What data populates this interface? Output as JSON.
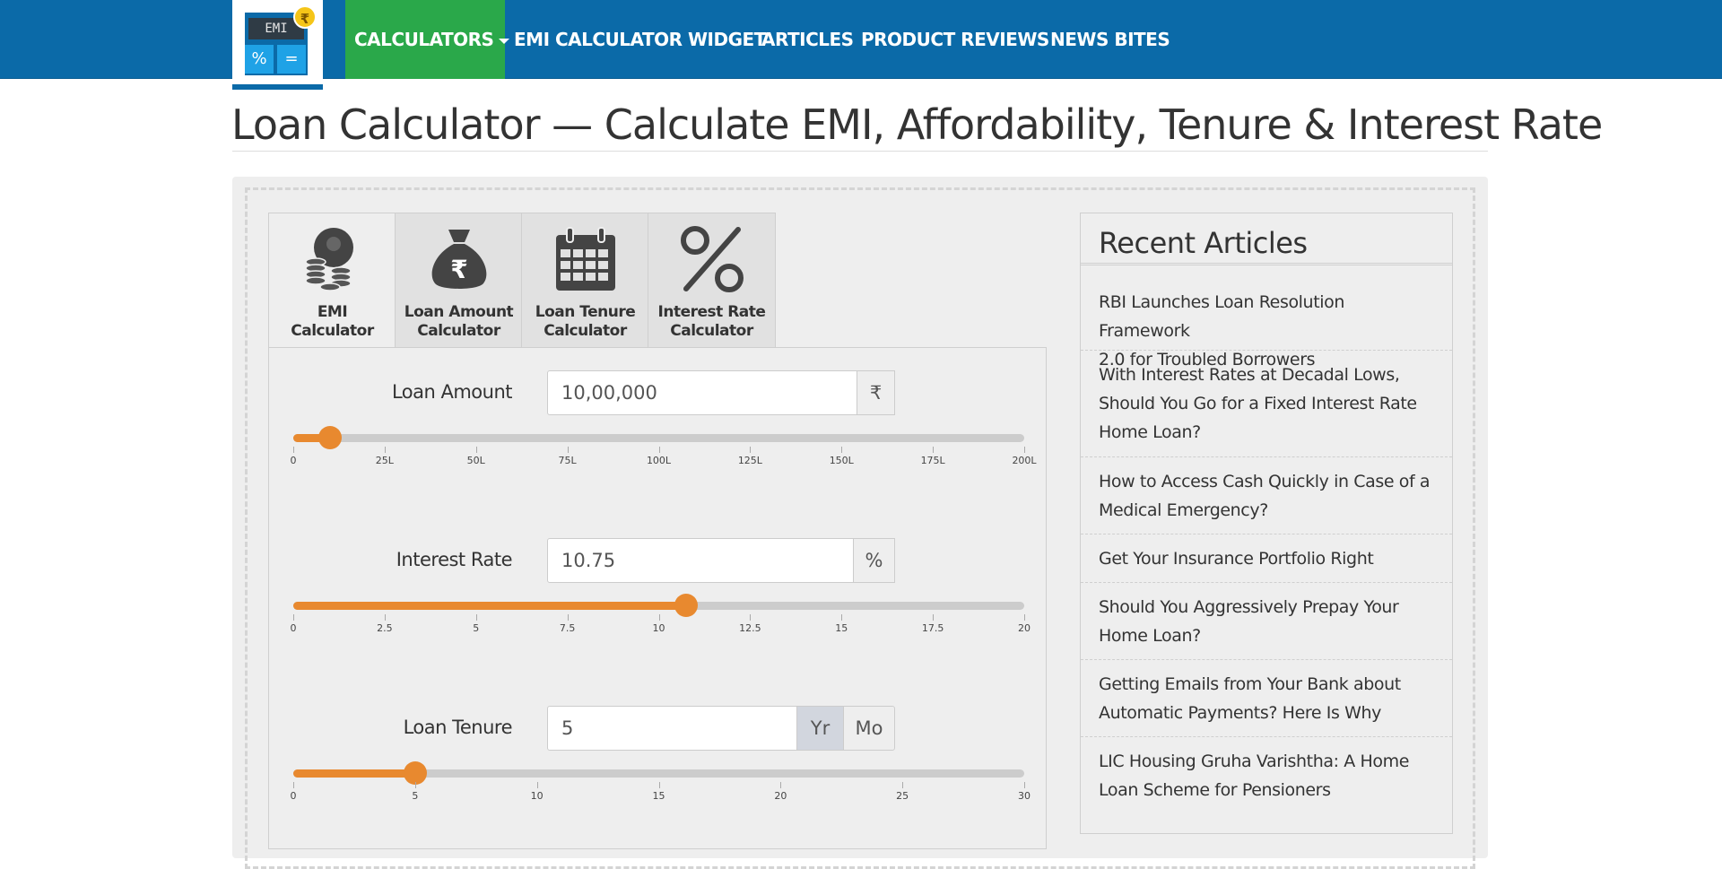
{
  "logo": {
    "screen_text": "EMI",
    "key_left": "%",
    "key_right": "=",
    "coin": "₹"
  },
  "nav": {
    "calculators": "CALCULATORS",
    "emi_widget": "EMI CALCULATOR WIDGET",
    "articles": "ARTICLES",
    "product_reviews": "PRODUCT REVIEWS",
    "news_bites": "NEWS BITES"
  },
  "page": {
    "title": "Loan Calculator — Calculate EMI, Affordability, Tenure & Interest Rate"
  },
  "tabs": [
    {
      "label_line1": "EMI",
      "label_line2": "Calculator",
      "icon": "coins-icon",
      "active": true
    },
    {
      "label_line1": "Loan Amount",
      "label_line2": "Calculator",
      "icon": "money-bag-icon",
      "active": false
    },
    {
      "label_line1": "Loan Tenure",
      "label_line2": "Calculator",
      "icon": "calendar-icon",
      "active": false
    },
    {
      "label_line1": "Interest Rate",
      "label_line2": "Calculator",
      "icon": "percent-icon",
      "active": false
    }
  ],
  "loan_amount": {
    "label": "Loan Amount",
    "value": "10,00,000",
    "unit": "₹",
    "slider_value": 10,
    "slider_max": 200,
    "ticks": [
      "0",
      "25L",
      "50L",
      "75L",
      "100L",
      "125L",
      "150L",
      "175L",
      "200L"
    ]
  },
  "interest_rate": {
    "label": "Interest Rate",
    "value": "10.75",
    "unit": "%",
    "slider_value": 10.75,
    "slider_max": 20,
    "ticks": [
      "0",
      "2.5",
      "5",
      "7.5",
      "10",
      "12.5",
      "15",
      "17.5",
      "20"
    ]
  },
  "loan_tenure": {
    "label": "Loan Tenure",
    "value": "5",
    "unit_year": "Yr",
    "unit_month": "Mo",
    "selected_unit": "Yr",
    "slider_value": 5,
    "slider_max": 30,
    "ticks": [
      "0",
      "5",
      "10",
      "15",
      "20",
      "25",
      "30"
    ]
  },
  "recent_articles": {
    "title": "Recent Articles",
    "items": [
      {
        "line1": "RBI Launches Loan Resolution Framework",
        "line2": "2.0 for Troubled Borrowers"
      },
      {
        "line1": "With Interest Rates at Decadal Lows,",
        "line2": "Should You Go for a Fixed Interest Rate",
        "line3": "Home Loan?"
      },
      {
        "line1": "How to Access Cash Quickly in Case of a",
        "line2": "Medical Emergency?"
      },
      {
        "line1": "Get Your Insurance Portfolio Right"
      },
      {
        "line1": "Should You Aggressively Prepay Your",
        "line2": "Home Loan?"
      },
      {
        "line1": "Getting Emails from Your Bank about",
        "line2": "Automatic Payments? Here Is Why"
      },
      {
        "line1": "LIC Housing Gruha Varishtha: A Home",
        "line2": "Loan Scheme for Pensioners"
      }
    ]
  }
}
